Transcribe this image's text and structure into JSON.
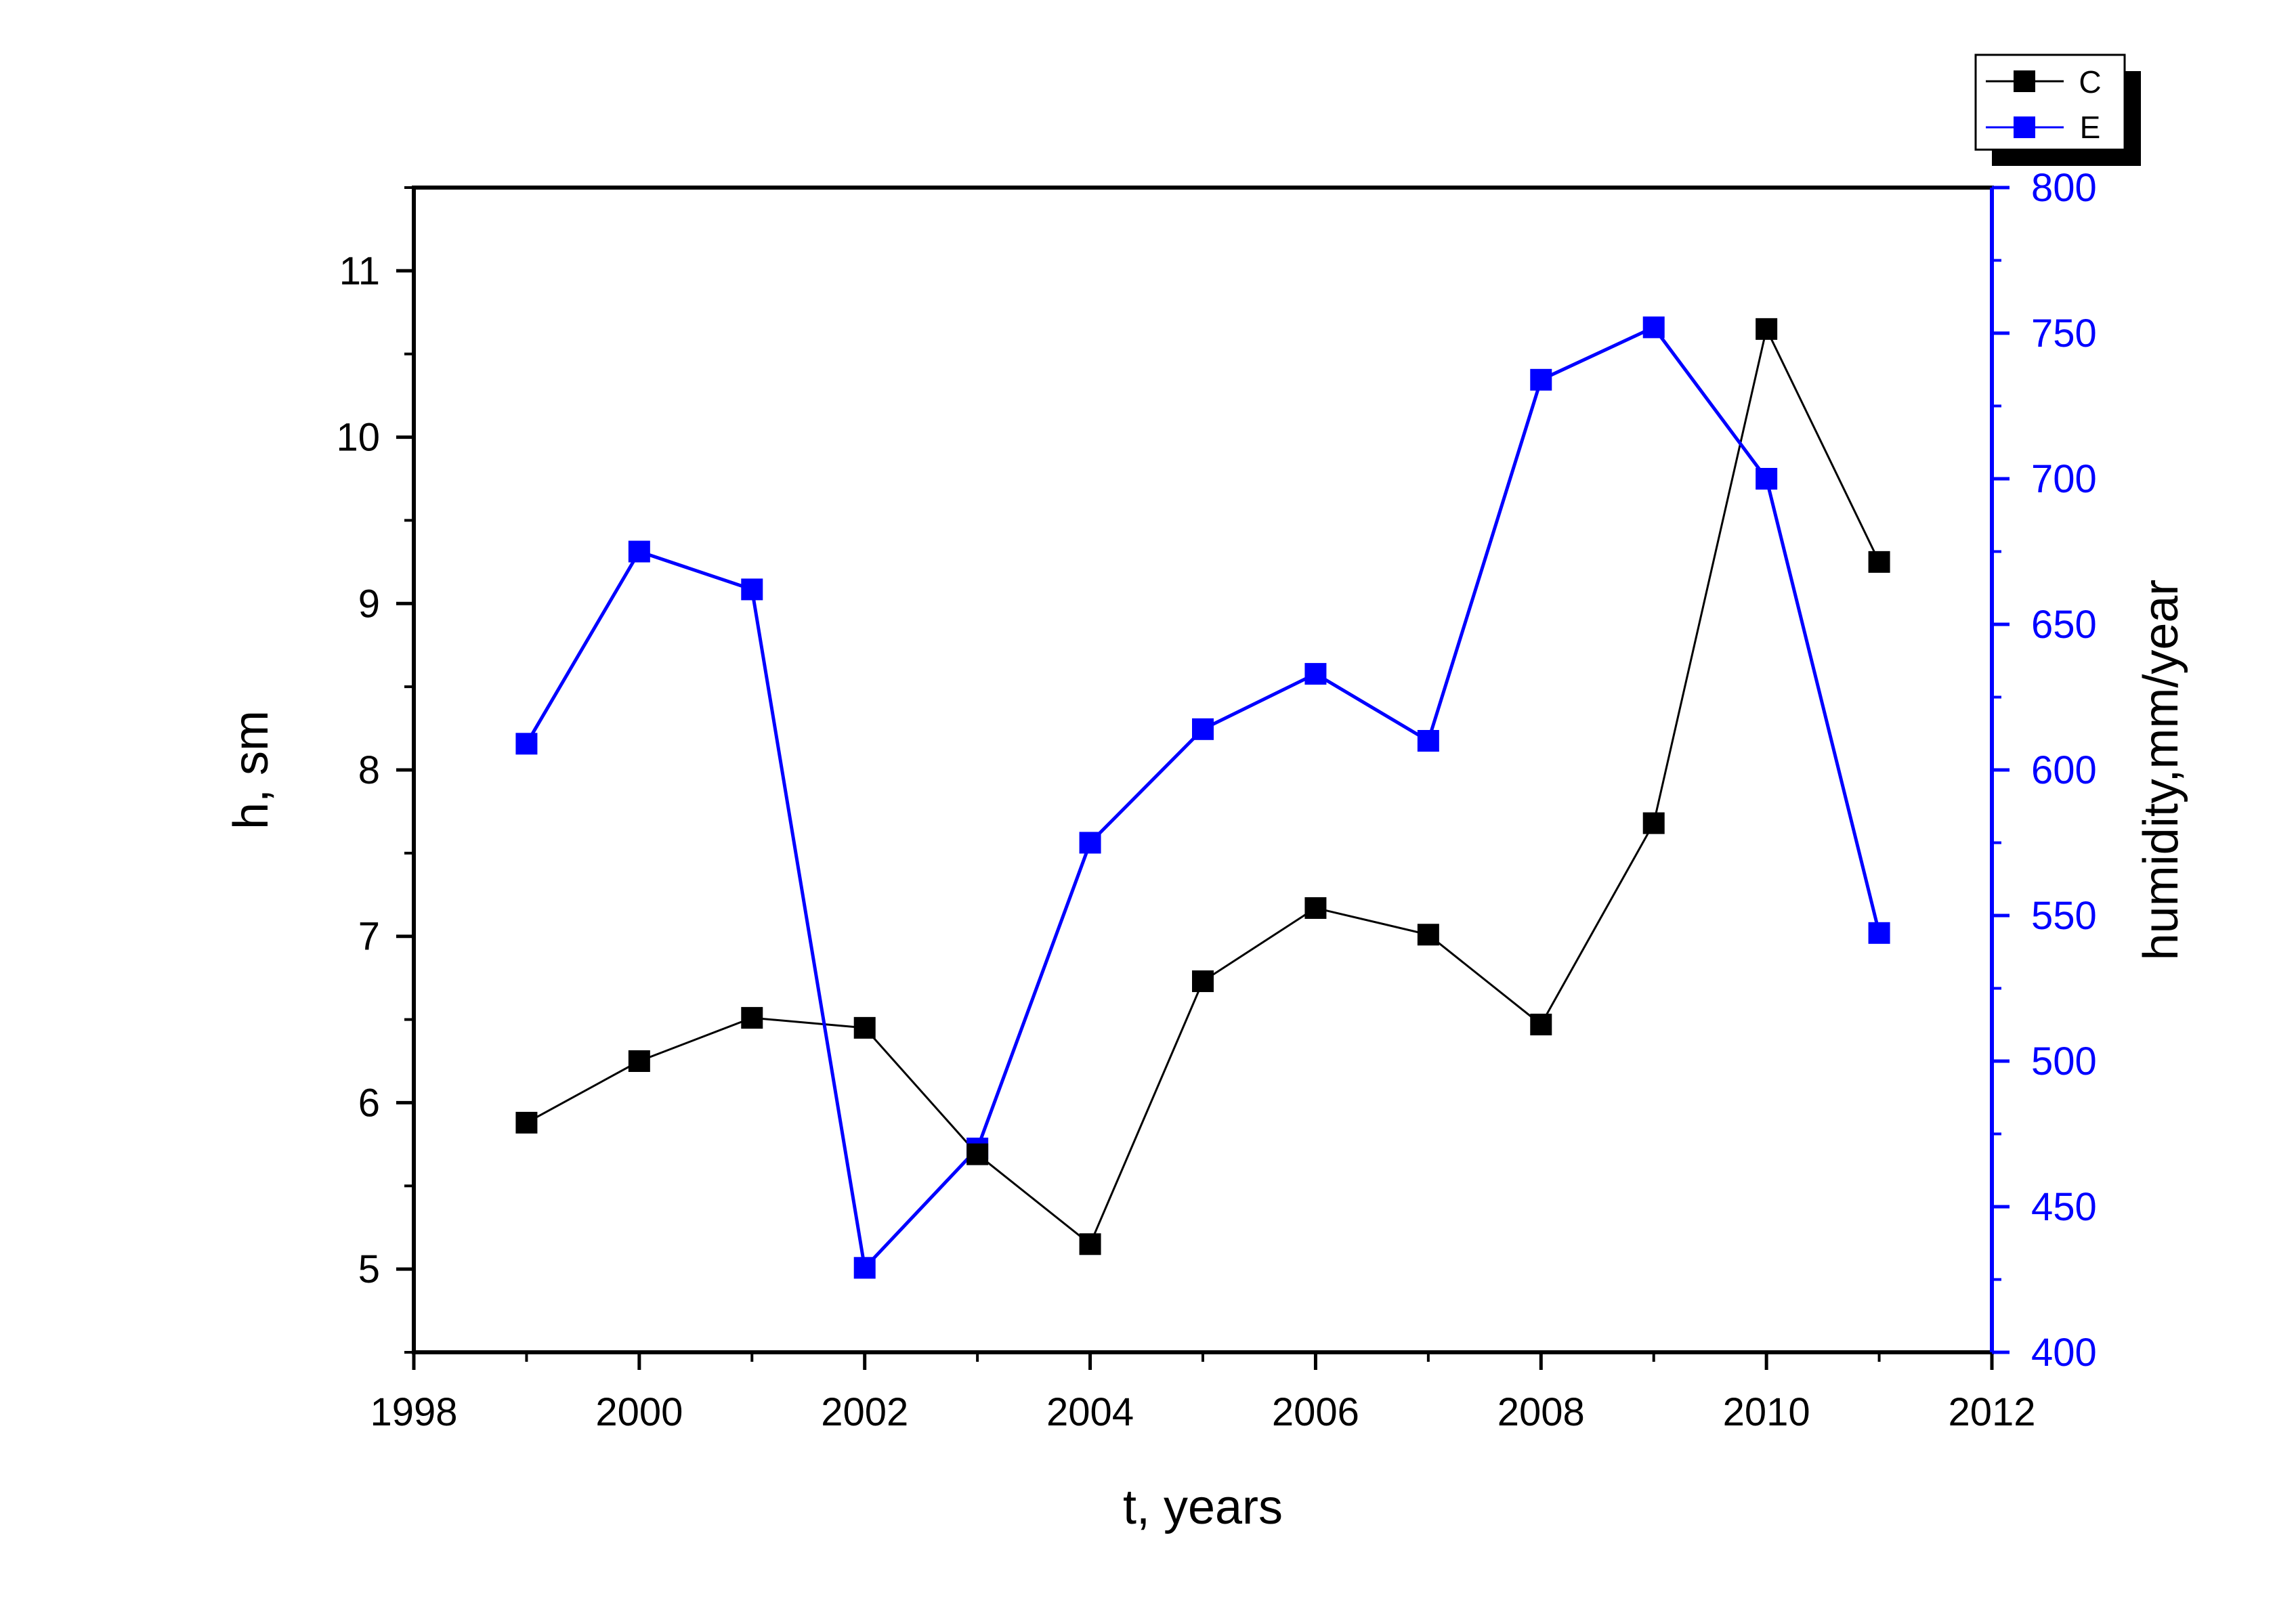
{
  "chart_data": {
    "type": "line",
    "title": "",
    "xlabel": "t, years",
    "ylabel": "h, sm",
    "y2label": "humidity,mm/year",
    "xlim": [
      1998,
      2012
    ],
    "ylim": [
      4.5,
      11.5
    ],
    "y2lim": [
      400,
      800
    ],
    "x_ticks": [
      "1998",
      "2000",
      "2002",
      "2004",
      "2006",
      "2008",
      "2010",
      "2012"
    ],
    "y_ticks": [
      "5",
      "6",
      "7",
      "8",
      "9",
      "10",
      "11"
    ],
    "y2_ticks": [
      "400",
      "450",
      "500",
      "550",
      "600",
      "650",
      "700",
      "750",
      "800"
    ],
    "legend_position": "top-right",
    "grid": false,
    "x": [
      1999,
      2000,
      2001,
      2002,
      2003,
      2004,
      2005,
      2006,
      2007,
      2008,
      2009,
      2010,
      2011
    ],
    "series": [
      {
        "name": "C",
        "axis": "left",
        "color": "#000000",
        "marker": "square",
        "values": [
          5.88,
          6.25,
          6.51,
          6.45,
          5.69,
          5.15,
          6.73,
          7.17,
          7.01,
          6.47,
          7.68,
          10.65,
          9.25
        ]
      },
      {
        "name": "E",
        "axis": "right",
        "color": "#0000ff",
        "marker": "square",
        "values": [
          609,
          675,
          662,
          429,
          470,
          575,
          614,
          633,
          610,
          734,
          752,
          700,
          544
        ]
      }
    ]
  }
}
